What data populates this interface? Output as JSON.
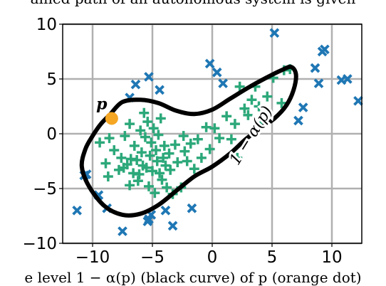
{
  "caption_top": "ained path of an autonomous system is given",
  "caption_bottom": "e level 1 − α(p) (black curve) of p (orange dot)",
  "chart_data": {
    "type": "scatter",
    "xlim": [
      -12.5,
      12.5
    ],
    "ylim": [
      -10,
      10
    ],
    "xticks": [
      -10,
      -5,
      0,
      5,
      10
    ],
    "yticks": [
      -10,
      -5,
      0,
      5,
      10
    ],
    "xtick_labels": [
      "−10",
      "−5",
      "0",
      "5",
      "10"
    ],
    "ytick_labels": [
      "−10",
      "−5",
      "0",
      "5",
      "10"
    ],
    "grid": true,
    "colors": {
      "inside": "#2ca87a",
      "outside": "#1f77b4",
      "curve": "#000000",
      "point": "#f5a623",
      "grid": "#b0b0b0"
    },
    "series": [
      {
        "marker": "plus",
        "color": "#2ca87a",
        "points": [
          [
            -8.6,
            -0.4
          ],
          [
            -8.9,
            -2.7
          ],
          [
            -8.2,
            -1.5
          ],
          [
            -7.8,
            -3.3
          ],
          [
            -7.6,
            -2.2
          ],
          [
            -7.4,
            -3.1
          ],
          [
            -7.3,
            -0.2
          ],
          [
            -7.1,
            -2.8
          ],
          [
            -6.9,
            -4.7
          ],
          [
            -6.9,
            0.9
          ],
          [
            -6.8,
            -2.3
          ],
          [
            -6.6,
            -3.6
          ],
          [
            -6.5,
            -1.1
          ],
          [
            -6.3,
            -2.4
          ],
          [
            -6.2,
            -4.3
          ],
          [
            -6.1,
            -3.7
          ],
          [
            -6.0,
            0.3
          ],
          [
            -5.9,
            -1.7
          ],
          [
            -5.8,
            -2.9
          ],
          [
            -5.7,
            1.9
          ],
          [
            -5.6,
            -0.3
          ],
          [
            -5.5,
            -3.1
          ],
          [
            -5.4,
            1.1
          ],
          [
            -5.3,
            -4.8
          ],
          [
            -5.2,
            -2.0
          ],
          [
            -5.1,
            -0.8
          ],
          [
            -5.0,
            -3.4
          ],
          [
            -4.9,
            0.5
          ],
          [
            -4.8,
            -5.4
          ],
          [
            -4.7,
            -1.5
          ],
          [
            -4.6,
            -2.5
          ],
          [
            -4.5,
            -0.1
          ],
          [
            -4.4,
            -3.6
          ],
          [
            -4.3,
            1.4
          ],
          [
            -4.2,
            -4.2
          ],
          [
            -4.1,
            -2.2
          ],
          [
            -4.0,
            -1.1
          ],
          [
            -3.9,
            -2.9
          ],
          [
            -3.8,
            -4.9
          ],
          [
            -3.6,
            -1.8
          ],
          [
            -3.5,
            -3.3
          ],
          [
            -3.3,
            -5.5
          ],
          [
            -3.1,
            -1.0
          ],
          [
            -2.9,
            -2.6
          ],
          [
            -2.6,
            -4.9
          ],
          [
            -2.4,
            -0.2
          ],
          [
            -2.3,
            -1.6
          ],
          [
            -2.1,
            -2.5
          ],
          [
            -1.8,
            -0.9
          ],
          [
            -1.5,
            -3.2
          ],
          [
            -1.2,
            -0.5
          ],
          [
            -0.9,
            -2.2
          ],
          [
            -0.5,
            0.6
          ],
          [
            -0.2,
            -1.4
          ],
          [
            0.2,
            0.5
          ],
          [
            0.6,
            -0.4
          ],
          [
            1.2,
            1.6
          ],
          [
            1.6,
            -0.5
          ],
          [
            1.9,
            0.9
          ],
          [
            2.1,
            -2.2
          ],
          [
            2.3,
            4.3
          ],
          [
            2.7,
            2.3
          ],
          [
            3.0,
            1.7
          ],
          [
            3.3,
            3.1
          ],
          [
            3.6,
            4.3
          ],
          [
            3.9,
            2.5
          ],
          [
            4.1,
            1.1
          ],
          [
            4.6,
            3.4
          ],
          [
            5.1,
            5.1
          ],
          [
            5.8,
            2.8
          ],
          [
            6.0,
            5.8
          ],
          [
            6.5,
            5.9
          ],
          [
            -9.4,
            -0.8
          ],
          [
            -8.7,
            -3.9
          ]
        ]
      },
      {
        "marker": "x",
        "color": "#1f77b4",
        "points": [
          [
            -11.3,
            -7.0
          ],
          [
            -10.7,
            -3.8
          ],
          [
            -10.5,
            -3.7
          ],
          [
            -9.5,
            -5.6
          ],
          [
            -8.8,
            -6.8
          ],
          [
            -7.5,
            -8.9
          ],
          [
            -6.9,
            3.3
          ],
          [
            -6.4,
            4.5
          ],
          [
            -5.4,
            -8.0
          ],
          [
            -5.3,
            -7.8
          ],
          [
            -5.1,
            -7.4
          ],
          [
            -5.3,
            5.2
          ],
          [
            -4.4,
            4.0
          ],
          [
            -3.9,
            -7.0
          ],
          [
            -3.3,
            -8.4
          ],
          [
            -1.7,
            -6.8
          ],
          [
            -0.2,
            6.4
          ],
          [
            0.4,
            5.6
          ],
          [
            0.9,
            4.6
          ],
          [
            5.2,
            9.2
          ],
          [
            7.2,
            1.2
          ],
          [
            7.6,
            2.4
          ],
          [
            8.6,
            6.0
          ],
          [
            8.9,
            4.6
          ],
          [
            9.2,
            7.5
          ],
          [
            9.4,
            7.7
          ],
          [
            10.8,
            4.9
          ],
          [
            11.3,
            5.0
          ],
          [
            12.2,
            3.0
          ]
        ]
      }
    ],
    "curve": {
      "label": "1 − α(p)",
      "points": [
        [
          -8.5,
          1.8
        ],
        [
          -7.5,
          2.9
        ],
        [
          -6.0,
          3.1
        ],
        [
          -4.5,
          2.8
        ],
        [
          -3.0,
          2.1
        ],
        [
          -1.5,
          1.8
        ],
        [
          0.0,
          2.2
        ],
        [
          1.5,
          3.2
        ],
        [
          3.0,
          4.2
        ],
        [
          4.5,
          5.1
        ],
        [
          5.8,
          5.8
        ],
        [
          6.6,
          6.1
        ],
        [
          7.0,
          5.4
        ],
        [
          6.8,
          4.0
        ],
        [
          6.2,
          2.6
        ],
        [
          5.2,
          1.4
        ],
        [
          4.0,
          0.5
        ],
        [
          2.8,
          -0.5
        ],
        [
          1.5,
          -1.8
        ],
        [
          0.0,
          -3.0
        ],
        [
          -1.5,
          -3.9
        ],
        [
          -3.0,
          -5.2
        ],
        [
          -4.5,
          -6.5
        ],
        [
          -6.0,
          -7.3
        ],
        [
          -7.5,
          -7.4
        ],
        [
          -9.0,
          -6.6
        ],
        [
          -10.3,
          -4.8
        ],
        [
          -10.9,
          -3.0
        ],
        [
          -10.6,
          -1.4
        ],
        [
          -10.0,
          -0.2
        ],
        [
          -9.3,
          0.9
        ],
        [
          -8.5,
          1.8
        ]
      ],
      "label_position": [
        3.6,
        -0.4
      ],
      "label_angle": -58
    },
    "point": {
      "label": "p",
      "x": -8.4,
      "y": 1.4,
      "color": "#f5a623"
    }
  }
}
